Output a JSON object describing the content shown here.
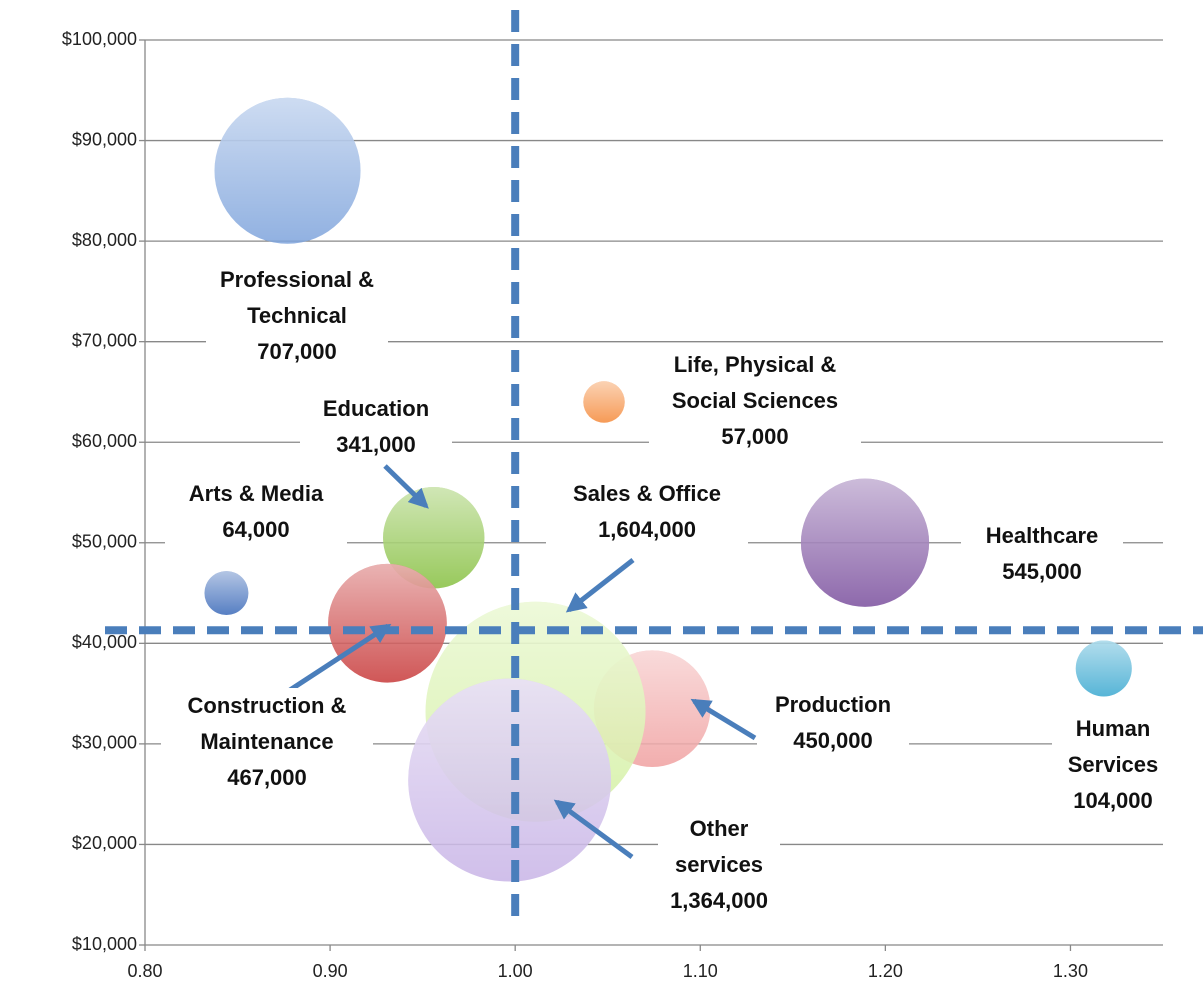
{
  "chart_data": {
    "type": "bubble",
    "xlim": [
      0.8,
      1.35
    ],
    "xticks": [
      {
        "value": 0.8,
        "label": "0.80"
      },
      {
        "value": 0.9,
        "label": "0.90"
      },
      {
        "value": 1.0,
        "label": "1.00"
      },
      {
        "value": 1.1,
        "label": "1.10"
      },
      {
        "value": 1.2,
        "label": "1.20"
      },
      {
        "value": 1.3,
        "label": "1.30"
      }
    ],
    "ylim": [
      10000,
      100000
    ],
    "yticks": [
      {
        "value": 10000,
        "label": "$10,000"
      },
      {
        "value": 20000,
        "label": "$20,000"
      },
      {
        "value": 30000,
        "label": "$30,000"
      },
      {
        "value": 40000,
        "label": "$40,000"
      },
      {
        "value": 50000,
        "label": "$50,000"
      },
      {
        "value": 60000,
        "label": "$60,000"
      },
      {
        "value": 70000,
        "label": "$70,000"
      },
      {
        "value": 80000,
        "label": "$80,000"
      },
      {
        "value": 90000,
        "label": "$90,000"
      },
      {
        "value": 100000,
        "label": "$100,000"
      }
    ],
    "grid": true,
    "reference_lines": {
      "x": 1.0,
      "y": 41300,
      "color": "#4a7ebb"
    },
    "points": [
      {
        "label": "Professional & Technical",
        "x": 0.877,
        "y": 87000,
        "size": 707000,
        "size_label": "707,000",
        "color": "#7ea3dc"
      },
      {
        "label": "Life, Physical & Social Sciences",
        "x": 1.048,
        "y": 64000,
        "size": 57000,
        "size_label": "57,000",
        "color": "#f58a3a"
      },
      {
        "label": "Education",
        "x": 0.956,
        "y": 50500,
        "size": 341000,
        "size_label": "341,000",
        "color": "#86c040"
      },
      {
        "label": "Arts & Media",
        "x": 0.844,
        "y": 45000,
        "size": 64000,
        "size_label": "64,000",
        "color": "#3a68b8"
      },
      {
        "label": "Healthcare",
        "x": 1.189,
        "y": 50000,
        "size": 545000,
        "size_label": "545,000",
        "color": "#7a4f9e"
      },
      {
        "label": "Construction & Maintenance",
        "x": 0.931,
        "y": 42000,
        "size": 467000,
        "size_label": "467,000",
        "color": "#c83a3a"
      },
      {
        "label": "Production",
        "x": 1.074,
        "y": 33500,
        "size": 450000,
        "size_label": "450,000",
        "color": "#f0a0a0"
      },
      {
        "label": "Human Services",
        "x": 1.318,
        "y": 37500,
        "size": 104000,
        "size_label": "104,000",
        "color": "#3aa8d0"
      },
      {
        "label": "Sales & Office",
        "x": 1.011,
        "y": 33200,
        "size": 1604000,
        "size_label": "1,604,000",
        "color": "#d2f0a0"
      },
      {
        "label": "Other services",
        "x": 0.997,
        "y": 26400,
        "size": 1364000,
        "size_label": "1,364,000",
        "color": "#c8b4e6"
      }
    ]
  }
}
